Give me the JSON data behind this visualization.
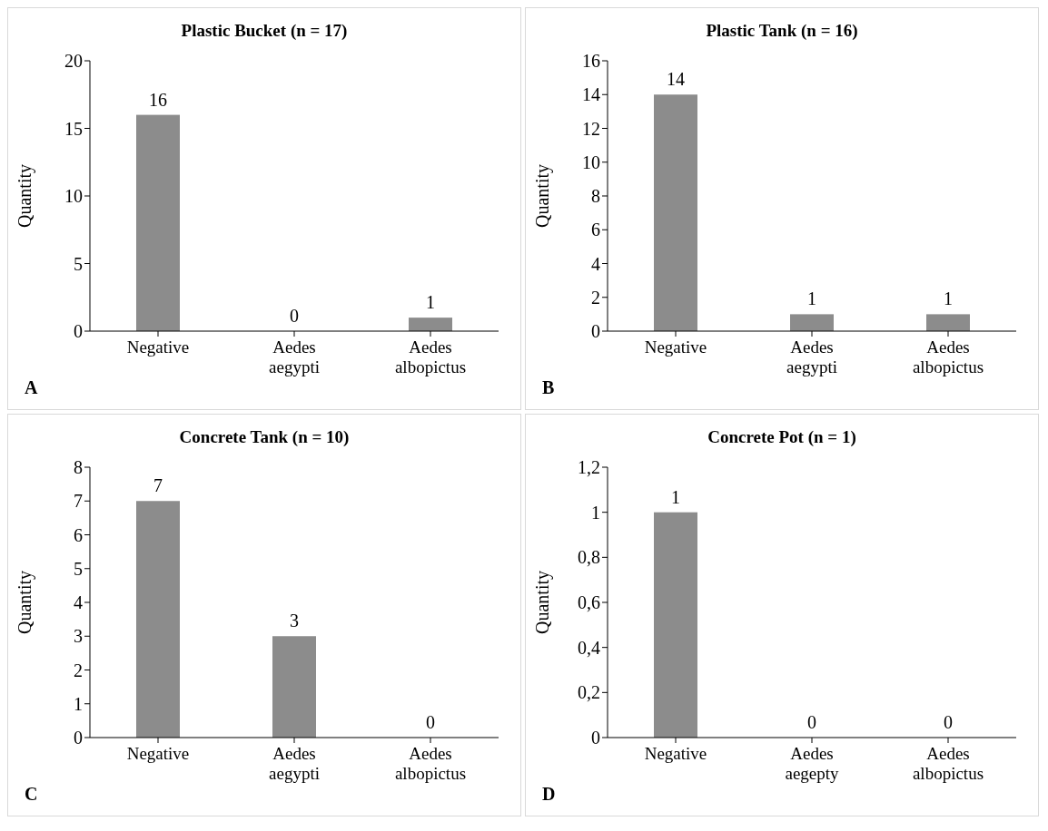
{
  "chart_data": [
    {
      "type": "bar",
      "title": "Plastic Bucket (n = 17)",
      "ylabel": "Quantity",
      "categories": [
        "Negative",
        "Aedes aegypti",
        "Aedes albopictus"
      ],
      "values": [
        16,
        0,
        1
      ],
      "color": "#8c8c8c",
      "ylim": [
        0,
        20
      ],
      "yticks": [
        0,
        5,
        10,
        15,
        20
      ],
      "data_labels": true,
      "grid": false,
      "annotations": [
        "A"
      ]
    },
    {
      "type": "bar",
      "title": "Plastic Tank (n = 16)",
      "ylabel": "Quantity",
      "categories": [
        "Negative",
        "Aedes aegypti",
        "Aedes albopictus"
      ],
      "values": [
        14,
        1,
        1
      ],
      "color": "#8c8c8c",
      "ylim": [
        0,
        16
      ],
      "yticks": [
        0,
        2,
        4,
        6,
        8,
        10,
        12,
        14,
        16
      ],
      "data_labels": true,
      "grid": false,
      "annotations": [
        "B"
      ]
    },
    {
      "type": "bar",
      "title": "Concrete Tank (n = 10)",
      "ylabel": "Quantity",
      "categories": [
        "Negative",
        "Aedes aegypti",
        "Aedes albopictus"
      ],
      "values": [
        7,
        3,
        0
      ],
      "color": "#8c8c8c",
      "ylim": [
        0,
        8
      ],
      "yticks": [
        0,
        1,
        2,
        3,
        4,
        5,
        6,
        7,
        8
      ],
      "data_labels": true,
      "grid": false,
      "annotations": [
        "C"
      ]
    },
    {
      "type": "bar",
      "title": "Concrete Pot (n = 1)",
      "ylabel": "Quantity",
      "categories": [
        "Negative",
        "Aedes aegepty",
        "Aedes albopictus"
      ],
      "values": [
        1,
        0,
        0
      ],
      "color": "#8c8c8c",
      "ylim": [
        0,
        1.2
      ],
      "yticks": [
        0,
        {
          "value": 0.2,
          "label": "0,2"
        },
        {
          "value": 0.4,
          "label": "0,4"
        },
        {
          "value": 0.6,
          "label": "0,6"
        },
        {
          "value": 0.8,
          "label": "0,8"
        },
        1,
        {
          "value": 1.2,
          "label": "1,2"
        }
      ],
      "data_labels": true,
      "grid": false,
      "annotations": [
        "D"
      ]
    }
  ]
}
